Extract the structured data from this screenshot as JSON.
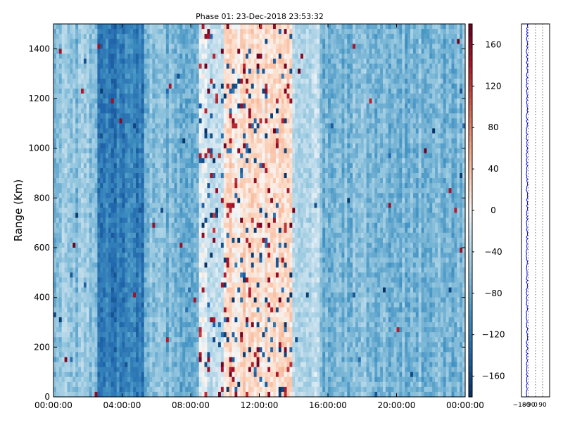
{
  "chart_data": [
    {
      "type": "heatmap",
      "title": "Phase 01: 23-Dec-2018 23:53:32",
      "xlabel": "",
      "ylabel": "Range (Km)",
      "x_ticks": [
        "00:00:00",
        "04:00:00",
        "08:00:00",
        "12:00:00",
        "16:00:00",
        "20:00:00",
        "00:00:00"
      ],
      "x_range_hours": [
        0,
        24
      ],
      "y_ticks": [
        0,
        200,
        400,
        600,
        800,
        1000,
        1200,
        1400
      ],
      "ylim": [
        0,
        1500
      ],
      "grid": false,
      "colormap": "RdBu_r",
      "colorbar": {
        "ticks": [
          160,
          120,
          80,
          40,
          0,
          -40,
          -80,
          -120,
          -160
        ],
        "tick_labels": [
          "160",
          "120",
          "80",
          "40",
          "0",
          "−40",
          "−80",
          "−120",
          "−160"
        ],
        "range": [
          -180,
          180
        ]
      },
      "time_phase_profile_degrees": [
        {
          "start_hour": 0,
          "end_hour": 2.5,
          "mean": -60
        },
        {
          "start_hour": 2.5,
          "end_hour": 5.3,
          "mean": -120
        },
        {
          "start_hour": 5.3,
          "end_hour": 8.5,
          "mean": -70
        },
        {
          "start_hour": 8.5,
          "end_hour": 10,
          "mean": -20
        },
        {
          "start_hour": 10,
          "end_hour": 14,
          "mean": 15
        },
        {
          "start_hour": 14,
          "end_hour": 15.5,
          "mean": -40
        },
        {
          "start_hour": 15.5,
          "end_hour": 24,
          "mean": -70
        }
      ]
    },
    {
      "type": "line",
      "x_ticks": [
        "−180",
        "−90",
        "0",
        "90"
      ],
      "x_tick_values": [
        -180,
        -90,
        0,
        90
      ],
      "xlim": [
        -180,
        180
      ],
      "ylim": [
        0,
        1500
      ],
      "line_color": "#0000cc",
      "profile_mean_x": -110
    }
  ]
}
